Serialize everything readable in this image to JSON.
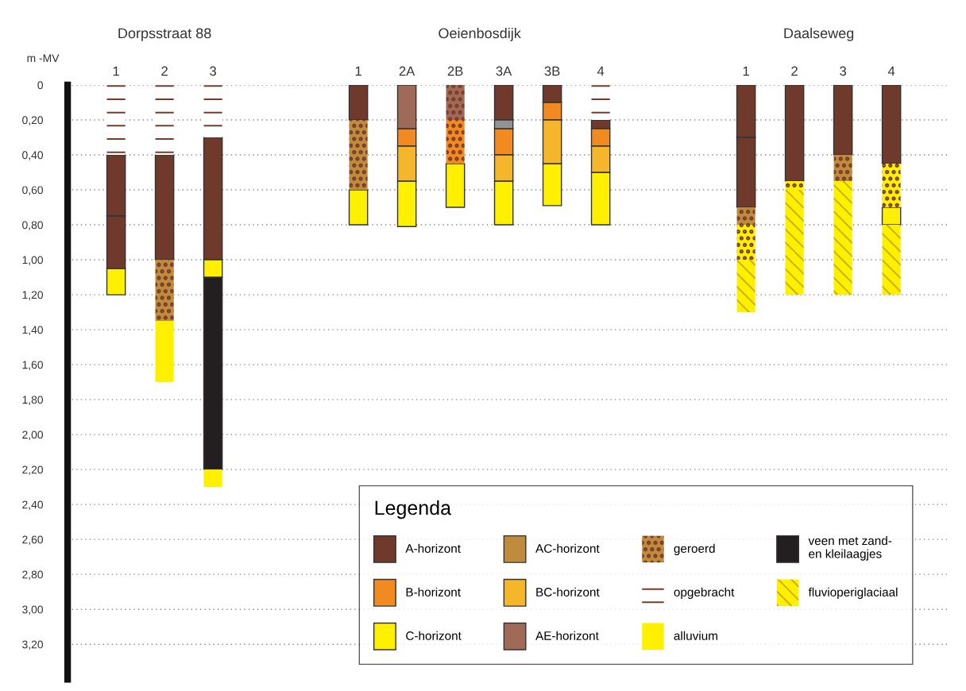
{
  "chart_data": {
    "type": "bar",
    "ylabel": "m -MV",
    "legend_title": "Legenda",
    "legend": "bottom right",
    "grid": "y",
    "annotations": [
      "Dorpsstraat 88",
      "Oeienbosdijk",
      "Daalseweg"
    ],
    "categories": [
      "1",
      "2",
      "3",
      null,
      null,
      "1",
      "2A",
      "2B",
      "3A",
      "3B",
      "4",
      null,
      null,
      "1",
      "2",
      "3",
      "4"
    ],
    "ylim": [
      3.4,
      0
    ],
    "yticks": [
      0,
      {
        "value": 0.2,
        "label": "0,20"
      },
      {
        "value": 0.4,
        "label": "0,40"
      },
      {
        "value": 0.6,
        "label": "0,60"
      },
      {
        "value": 0.8,
        "label": "0,80"
      },
      {
        "value": 1.0,
        "label": "1,00"
      },
      {
        "value": 1.2,
        "label": "1,20"
      },
      {
        "value": 1.4,
        "label": "1,40"
      },
      {
        "value": 1.6,
        "label": "1,60"
      },
      {
        "value": 1.8,
        "label": "1,80"
      },
      {
        "value": 2.0,
        "label": "2,00"
      },
      {
        "value": 2.2,
        "label": "2,20"
      },
      {
        "value": 2.4,
        "label": "2,40"
      },
      {
        "value": 2.6,
        "label": "2,60"
      },
      {
        "value": 2.8,
        "label": "2,80"
      },
      {
        "value": 3.0,
        "label": "3,00"
      },
      {
        "value": 3.2,
        "label": "3,20"
      }
    ],
    "series": [
      {
        "name": "A-horizont",
        "color": "#6f3a2c",
        "base": [
          0.4,
          0.4,
          0.3,
          null,
          null,
          0,
          null,
          null,
          0,
          0,
          0.2,
          null,
          null,
          0,
          0,
          0,
          0
        ],
        "values": [
          0.35,
          0.6,
          0.7,
          null,
          null,
          0.2,
          null,
          null,
          0.2,
          0.1,
          0.05,
          null,
          null,
          0.3,
          0.55,
          0.4,
          0.45
        ]
      },
      {
        "name": "B-horizont",
        "color": "#f28a22",
        "base": [
          null,
          null,
          null,
          null,
          null,
          null,
          0.25,
          null,
          0.25,
          0.1,
          0.25,
          null,
          null,
          null,
          null,
          null,
          null
        ],
        "values": [
          null,
          null,
          null,
          null,
          null,
          null,
          0.1,
          null,
          0.15,
          0.1,
          0.1,
          null,
          null,
          null,
          null,
          null,
          null
        ]
      },
      {
        "name": "C-horizont",
        "color": "#fff000",
        "base": [
          1.05,
          null,
          1.0,
          null,
          null,
          0.6,
          0.55,
          0.45,
          0.55,
          0.45,
          0.5,
          null,
          null,
          null,
          null,
          null,
          0.7
        ],
        "values": [
          0.15,
          null,
          0.1,
          null,
          null,
          0.2,
          0.26,
          0.25,
          0.25,
          0.24,
          0.3,
          null,
          null,
          null,
          null,
          null,
          0.1
        ]
      },
      {
        "name": "AC-horizont",
        "color": "#bf8b3c",
        "base": [
          null,
          null,
          null,
          null,
          null,
          null,
          null,
          null,
          null,
          null,
          null,
          null,
          null,
          null,
          null,
          null,
          null
        ],
        "values": [
          null,
          null,
          null,
          null,
          null,
          null,
          null,
          null,
          null,
          null,
          null,
          null,
          null,
          null,
          null,
          null,
          null
        ]
      },
      {
        "name": "BC-horizont",
        "color": "#f5b62c",
        "base": [
          null,
          null,
          null,
          null,
          null,
          null,
          0.35,
          null,
          0.4,
          0.2,
          0.35,
          null,
          null,
          null,
          null,
          null,
          null
        ],
        "values": [
          null,
          null,
          null,
          null,
          null,
          null,
          0.2,
          null,
          0.15,
          0.25,
          0.15,
          null,
          null,
          null,
          null,
          null,
          null
        ]
      },
      {
        "name": "AE-horizont",
        "color": "#a06a58",
        "base": [
          null,
          null,
          null,
          null,
          null,
          null,
          0,
          null,
          null,
          null,
          null,
          null,
          null,
          null,
          null,
          null,
          null
        ],
        "values": [
          null,
          null,
          null,
          null,
          null,
          null,
          0.25,
          null,
          null,
          null,
          null,
          null,
          null,
          null,
          null,
          null,
          null
        ]
      },
      {
        "name": "geroerd",
        "color": "#7a3a2a",
        "marker": "circle",
        "colors": [
          null,
          "#bf8b3c",
          null,
          null,
          null,
          "#bf8b3c",
          null,
          "#a06a58",
          null,
          null,
          null,
          null,
          null,
          "#bf8b3c",
          "#fff000",
          "#bf8b3c",
          "#fff000"
        ],
        "base": [
          null,
          1.0,
          null,
          null,
          null,
          0.2,
          null,
          0,
          null,
          null,
          null,
          null,
          null,
          0.7,
          0.55,
          0.4,
          0.45
        ],
        "values": [
          null,
          0.35,
          null,
          null,
          null,
          0.4,
          null,
          0.2,
          null,
          null,
          null,
          null,
          null,
          0.1,
          0.05,
          0.15,
          0.25
        ]
      },
      {
        "name": "opgebracht",
        "color": "#7a3a2a",
        "line_style": "dashed",
        "colors": [
          "#ffffff",
          "#ffffff",
          "#ffffff",
          null,
          null,
          null,
          null,
          null,
          null,
          null,
          "#ffffff",
          null,
          null,
          null,
          null,
          null,
          null
        ],
        "base": [
          0,
          0,
          0,
          null,
          null,
          null,
          null,
          null,
          null,
          null,
          0,
          null,
          null,
          null,
          null,
          null,
          null
        ],
        "values": [
          0.4,
          0.4,
          0.3,
          null,
          null,
          null,
          null,
          null,
          null,
          null,
          0.2,
          null,
          null,
          null,
          null,
          null,
          null
        ]
      },
      {
        "name": "alluvium",
        "color": "#d8c000",
        "line_style": "dotted",
        "colors": [
          null,
          "#fff000",
          "#fff000",
          null,
          null,
          null,
          null,
          null,
          null,
          null,
          null,
          null,
          null,
          null,
          null,
          null,
          null
        ],
        "base": [
          null,
          1.35,
          2.2,
          null,
          null,
          null,
          null,
          null,
          null,
          null,
          null,
          null,
          null,
          null,
          null,
          null,
          null
        ],
        "values": [
          null,
          0.35,
          0.1,
          null,
          null,
          null,
          null,
          null,
          null,
          null,
          null,
          null,
          null,
          null,
          null,
          null,
          null
        ]
      },
      {
        "name": "veen met zand-\nen kleilaagjes",
        "color": "#231f20",
        "base": [
          null,
          null,
          1.1,
          null,
          null,
          null,
          null,
          null,
          null,
          null,
          null,
          null,
          null,
          null,
          null,
          null,
          null
        ],
        "values": [
          null,
          null,
          1.1,
          null,
          null,
          null,
          null,
          null,
          null,
          null,
          null,
          null,
          null,
          null,
          null,
          null,
          null
        ]
      },
      {
        "name": "fluvioperiglaciaal",
        "color": "#c9b000",
        "line_style": "solid",
        "colors": [
          null,
          null,
          null,
          null,
          null,
          null,
          null,
          null,
          null,
          null,
          null,
          null,
          null,
          "#fff000",
          "#fff000",
          "#fff000",
          "#fff000"
        ],
        "base": [
          null,
          null,
          null,
          null,
          null,
          null,
          null,
          null,
          null,
          null,
          null,
          null,
          null,
          1.0,
          0.6,
          0.55,
          0.8
        ],
        "values": [
          null,
          null,
          null,
          null,
          null,
          null,
          null,
          null,
          null,
          null,
          null,
          null,
          null,
          0.1,
          0.25,
          0.2,
          0.4
        ]
      },
      {
        "color": "#6f3a2c",
        "base": [
          0.75,
          null,
          null,
          null,
          null,
          null,
          null,
          null,
          null,
          null,
          null,
          null,
          null,
          0.3,
          null,
          null,
          null
        ],
        "values": [
          0.3,
          null,
          null,
          null,
          null,
          null,
          null,
          null,
          null,
          null,
          null,
          null,
          null,
          0.4,
          null,
          null,
          null
        ]
      },
      {
        "color": "#7a3a2a",
        "marker": "circle",
        "colors": [
          null,
          null,
          null,
          null,
          null,
          null,
          null,
          "#f28a22",
          null,
          null,
          null,
          null,
          null,
          "#fff000",
          null,
          null,
          null
        ],
        "base": [
          null,
          null,
          null,
          null,
          null,
          null,
          null,
          0.2,
          null,
          null,
          null,
          null,
          null,
          0.8,
          null,
          null,
          null
        ],
        "values": [
          null,
          null,
          null,
          null,
          null,
          null,
          null,
          0.25,
          null,
          null,
          null,
          null,
          null,
          0.2,
          null,
          null,
          null
        ]
      },
      {
        "color": "#c9b000",
        "line_style": "solid",
        "colors": [
          null,
          null,
          null,
          null,
          null,
          null,
          null,
          null,
          null,
          null,
          null,
          null,
          null,
          "#fff000",
          "#fff000",
          "#fff000",
          null
        ],
        "base": [
          null,
          null,
          null,
          null,
          null,
          null,
          null,
          null,
          null,
          null,
          null,
          null,
          null,
          1.1,
          0.85,
          0.75,
          null
        ],
        "values": [
          null,
          null,
          null,
          null,
          null,
          null,
          null,
          null,
          null,
          null,
          null,
          null,
          null,
          0.2,
          0.35,
          0.45,
          null
        ]
      },
      {
        "color": "#939393",
        "base": [
          null,
          null,
          null,
          null,
          null,
          null,
          null,
          null,
          0.2,
          null,
          null,
          null,
          null,
          null,
          null,
          null,
          null
        ],
        "values": [
          null,
          null,
          null,
          null,
          null,
          null,
          null,
          null,
          0.05,
          null,
          null,
          null,
          null,
          null,
          null,
          null,
          null
        ]
      }
    ]
  }
}
